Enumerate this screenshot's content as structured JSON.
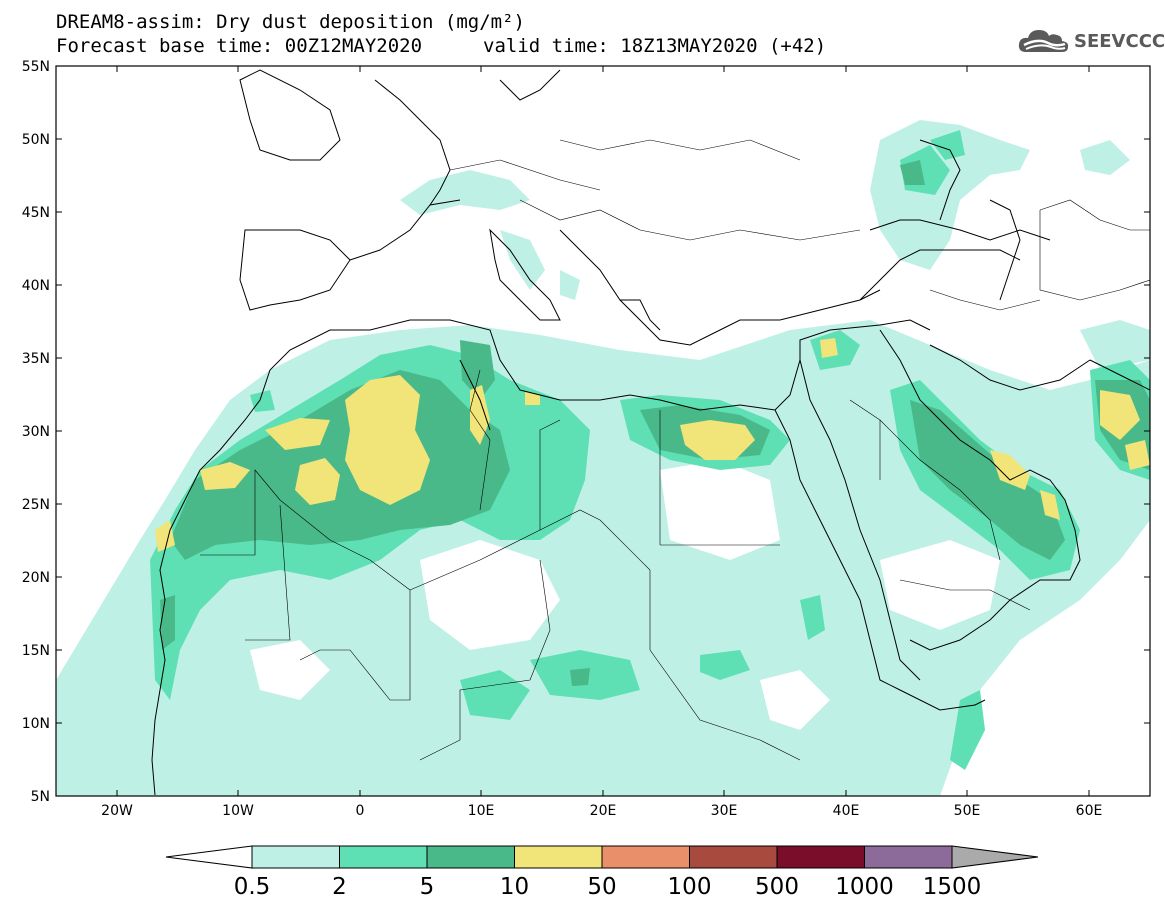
{
  "title": {
    "line1": "DREAM8-assim: Dry dust deposition (mg/m²)",
    "line2": "Forecast base time: 00Z12MAY2020",
    "valid": "valid time: 18Z13MAY2020 (+42)"
  },
  "logo": {
    "text": "SEEVCCC",
    "icon": "cloud-icon"
  },
  "map": {
    "lon_range": [
      -25,
      65
    ],
    "lat_range": [
      5,
      55
    ],
    "lat_ticks": [
      "5N",
      "10N",
      "15N",
      "20N",
      "25N",
      "30N",
      "35N",
      "40N",
      "45N",
      "50N",
      "55N"
    ],
    "lon_ticks": [
      "20W",
      "10W",
      "0",
      "10E",
      "20E",
      "30E",
      "40E",
      "50E",
      "60E"
    ]
  },
  "colorbar": {
    "labels": [
      "0.5",
      "2",
      "5",
      "10",
      "50",
      "100",
      "500",
      "1000",
      "1500"
    ],
    "colors": [
      "#bff0e6",
      "#5ee0b4",
      "#4ab98a",
      "#f1e479",
      "#e9906a",
      "#a84a3e",
      "#7a0d2a",
      "#8c6b9a",
      "#aaaaaa"
    ],
    "under_color": "#ffffff"
  },
  "dust_fields": {
    "low": "#bff0e6",
    "moderate": "#5ee0b4",
    "high": "#4ab98a",
    "very_high": "#f1e479"
  }
}
